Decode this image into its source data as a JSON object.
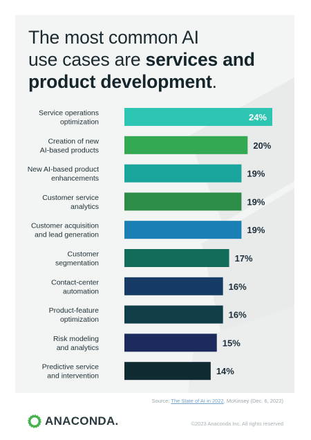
{
  "title": {
    "line1": "The most common AI",
    "line2_plain": "use cases are ",
    "line2_bold": "services and",
    "line3_bold": "product development",
    "line3_end": "."
  },
  "chart_data": {
    "type": "bar",
    "orientation": "horizontal",
    "categories": [
      [
        "Service operations",
        "optimization"
      ],
      [
        "Creation of new",
        "AI-based products"
      ],
      [
        "New AI-based product",
        "enhancements"
      ],
      [
        "Customer service",
        "analytics"
      ],
      [
        "Customer acquisition",
        "and lead generation"
      ],
      [
        "Customer",
        "segmentation"
      ],
      [
        "Contact-center",
        "automation"
      ],
      [
        "Product-feature",
        "optimization"
      ],
      [
        "Risk modeling",
        "and analytics"
      ],
      [
        "Predictive service",
        "and intervention"
      ]
    ],
    "values": [
      24,
      20,
      19,
      19,
      19,
      17,
      16,
      16,
      15,
      14
    ],
    "value_labels": [
      "24%",
      "20%",
      "19%",
      "19%",
      "19%",
      "17%",
      "16%",
      "16%",
      "15%",
      "14%"
    ],
    "colors": [
      "#2ec6b2",
      "#34a954",
      "#19a59b",
      "#2d8c47",
      "#1a7fb4",
      "#136c5a",
      "#163c66",
      "#0f3d48",
      "#1c2b5b",
      "#0f2a30"
    ],
    "label_inside": [
      true,
      false,
      false,
      false,
      false,
      false,
      false,
      false,
      false,
      false
    ],
    "xlim": [
      0,
      24
    ],
    "grid": false
  },
  "source": {
    "prefix": "Source: ",
    "link": "The State of AI in 2022",
    "suffix": ", McKinsey (Dec. 6, 2022)"
  },
  "footer": {
    "logo_text": "ANACONDA.",
    "copyright": "©2023 Anaconda Inc. All rights reserved",
    "logo_color": "#43b049",
    "logo_icon": "anaconda-ring-logo"
  }
}
